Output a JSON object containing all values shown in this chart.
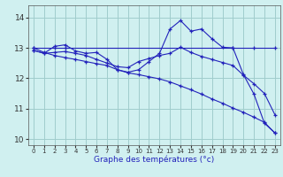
{
  "xlabel": "Graphe des températures (°c)",
  "background_color": "#d0f0f0",
  "grid_color": "#a0cccc",
  "line_color": "#2222bb",
  "xlim": [
    -0.5,
    23.5
  ],
  "ylim": [
    9.8,
    14.4
  ],
  "xticks": [
    0,
    1,
    2,
    3,
    4,
    5,
    6,
    7,
    8,
    9,
    10,
    11,
    12,
    13,
    14,
    15,
    16,
    17,
    18,
    19,
    20,
    21,
    22,
    23
  ],
  "yticks": [
    10,
    11,
    12,
    13,
    14
  ],
  "series": [
    {
      "x": [
        0,
        2,
        3,
        19,
        21,
        23
      ],
      "y": [
        13.0,
        13.0,
        13.0,
        13.0,
        13.0,
        13.0
      ]
    },
    {
      "x": [
        0,
        1,
        2,
        3,
        4,
        5,
        6,
        7,
        8,
        9,
        10,
        11,
        12,
        13,
        14,
        15,
        16,
        17,
        18,
        19,
        20,
        21,
        22,
        23
      ],
      "y": [
        12.92,
        12.82,
        13.05,
        13.1,
        12.9,
        12.82,
        12.85,
        12.62,
        12.28,
        12.2,
        12.28,
        12.55,
        12.82,
        13.62,
        13.9,
        13.55,
        13.62,
        13.3,
        13.02,
        13.0,
        12.12,
        11.48,
        10.52,
        10.2
      ]
    },
    {
      "x": [
        0,
        1,
        2,
        3,
        4,
        5,
        6,
        7,
        8,
        9,
        10,
        11,
        12,
        13,
        14,
        15,
        16,
        17,
        18,
        19,
        20,
        21,
        22,
        23
      ],
      "y": [
        12.92,
        12.82,
        12.85,
        12.88,
        12.82,
        12.75,
        12.62,
        12.5,
        12.38,
        12.35,
        12.55,
        12.65,
        12.75,
        12.82,
        13.02,
        12.85,
        12.72,
        12.62,
        12.52,
        12.42,
        12.1,
        11.82,
        11.5,
        10.8
      ]
    },
    {
      "x": [
        0,
        1,
        2,
        3,
        4,
        5,
        6,
        7,
        8,
        9,
        10,
        11,
        12,
        13,
        14,
        15,
        16,
        17,
        18,
        19,
        20,
        21,
        22,
        23
      ],
      "y": [
        13.0,
        12.85,
        12.75,
        12.68,
        12.62,
        12.55,
        12.48,
        12.42,
        12.28,
        12.18,
        12.12,
        12.05,
        11.98,
        11.88,
        11.75,
        11.62,
        11.48,
        11.32,
        11.18,
        11.02,
        10.88,
        10.72,
        10.55,
        10.2
      ]
    }
  ]
}
